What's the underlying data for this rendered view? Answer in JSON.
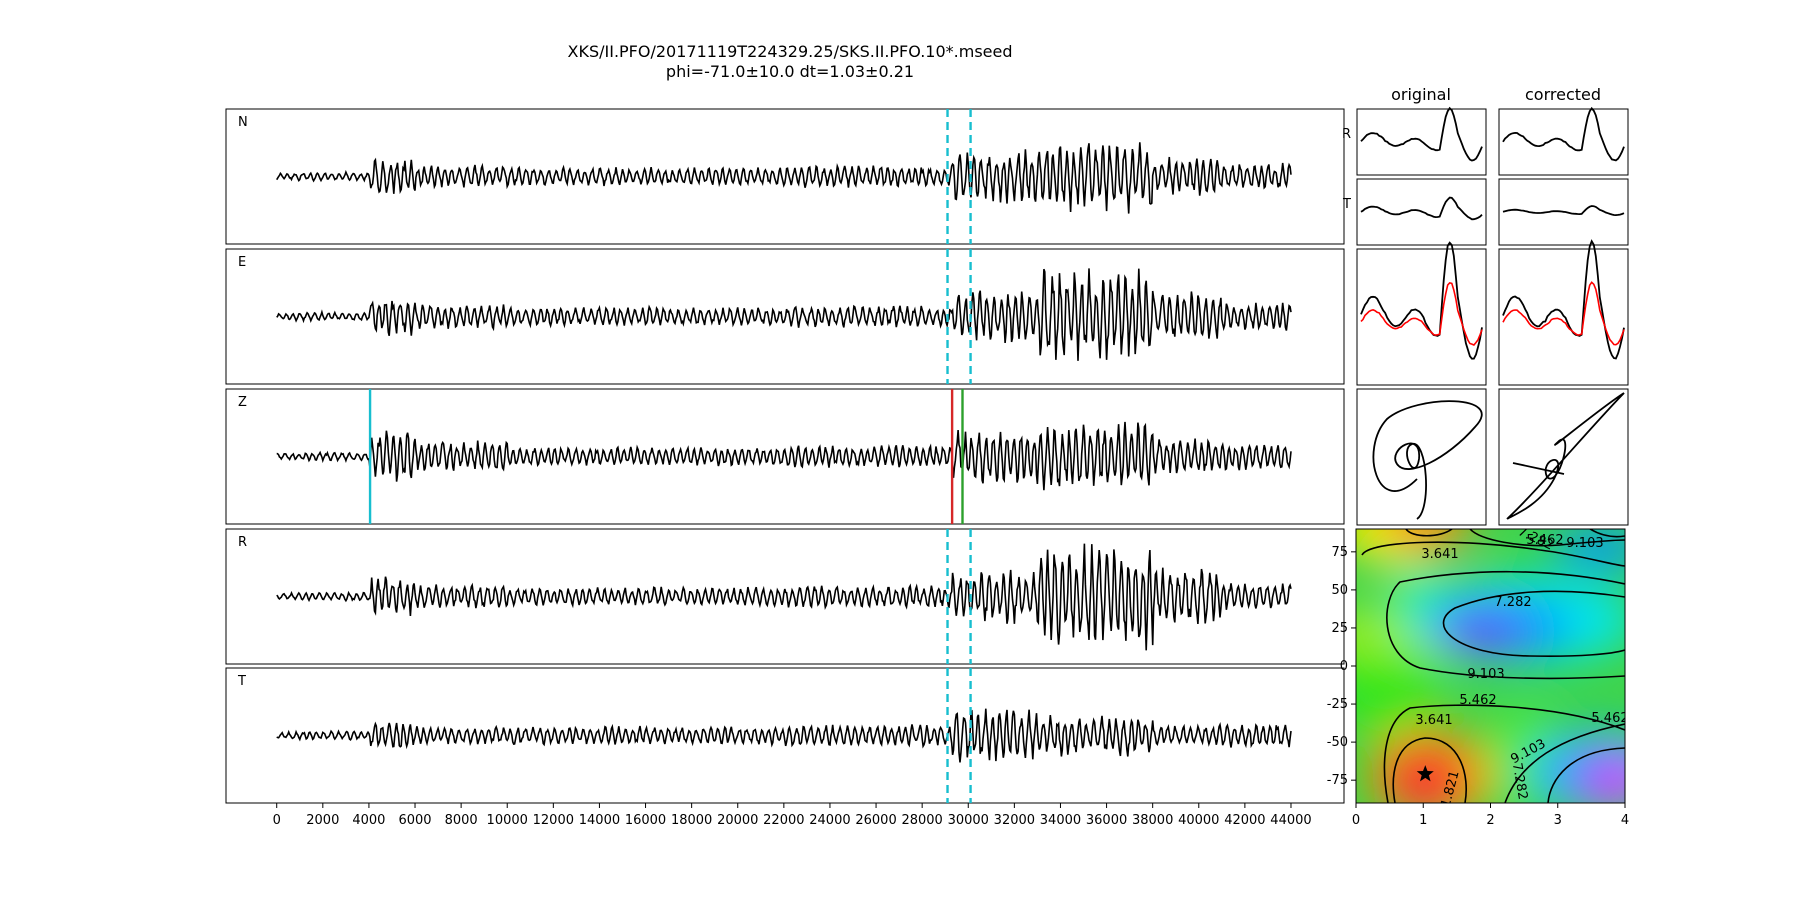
{
  "title": {
    "line1": "XKS/II.PFO/20171119T224329.25/SKS.II.PFO.10*.mseed",
    "line2": "phi=-71.0±10.0 dt=1.03±0.21"
  },
  "colors": {
    "window_marker": "#17becf",
    "pick_red": "#d62728",
    "pick_green": "#2ca02c",
    "corrected_red": "#ff0000",
    "trace": "#000000"
  },
  "chart_data": [
    {
      "type": "line",
      "name": "seismograms",
      "traces": [
        "N",
        "E",
        "Z",
        "R",
        "T"
      ],
      "xlim": [
        -2200,
        46300
      ],
      "x_ticks": [
        0,
        2000,
        4000,
        6000,
        8000,
        10000,
        12000,
        14000,
        16000,
        18000,
        20000,
        22000,
        24000,
        26000,
        28000,
        30000,
        32000,
        34000,
        36000,
        38000,
        40000,
        42000,
        44000
      ],
      "x_tick_labels": [
        "0",
        "2000",
        "4000",
        "6000",
        "8000",
        "10000",
        "12000",
        "14000",
        "16000",
        "18000",
        "20000",
        "22000",
        "24000",
        "26000",
        "28000",
        "30000",
        "32000",
        "34000",
        "36000",
        "38000",
        "40000",
        "42000",
        "44000"
      ],
      "data_range": [
        0,
        44000
      ],
      "window_start": 29100,
      "window_end": 30100,
      "z_markers": [
        {
          "x": 4050,
          "color": "cyan"
        },
        {
          "x": 29300,
          "color": "red"
        },
        {
          "x": 29750,
          "color": "green"
        }
      ]
    },
    {
      "type": "line",
      "name": "particle_motion",
      "columns": [
        "original",
        "corrected"
      ],
      "rows": [
        "R",
        "T"
      ],
      "notes": "windowed R/T components, E/N overlays and particle motion for original and corrected"
    },
    {
      "type": "heatmap",
      "name": "error_surface",
      "xlim": [
        0,
        4
      ],
      "ylim": [
        -90,
        90
      ],
      "x_ticks": [
        0,
        1,
        2,
        3,
        4
      ],
      "y_ticks": [
        -75,
        -50,
        -25,
        0,
        25,
        50,
        75
      ],
      "contour_labels": [
        "1.821",
        "3.641",
        "5.462",
        "7.282",
        "9.103"
      ],
      "best_fit": {
        "dt": 1.03,
        "phi": -71.0
      }
    }
  ]
}
